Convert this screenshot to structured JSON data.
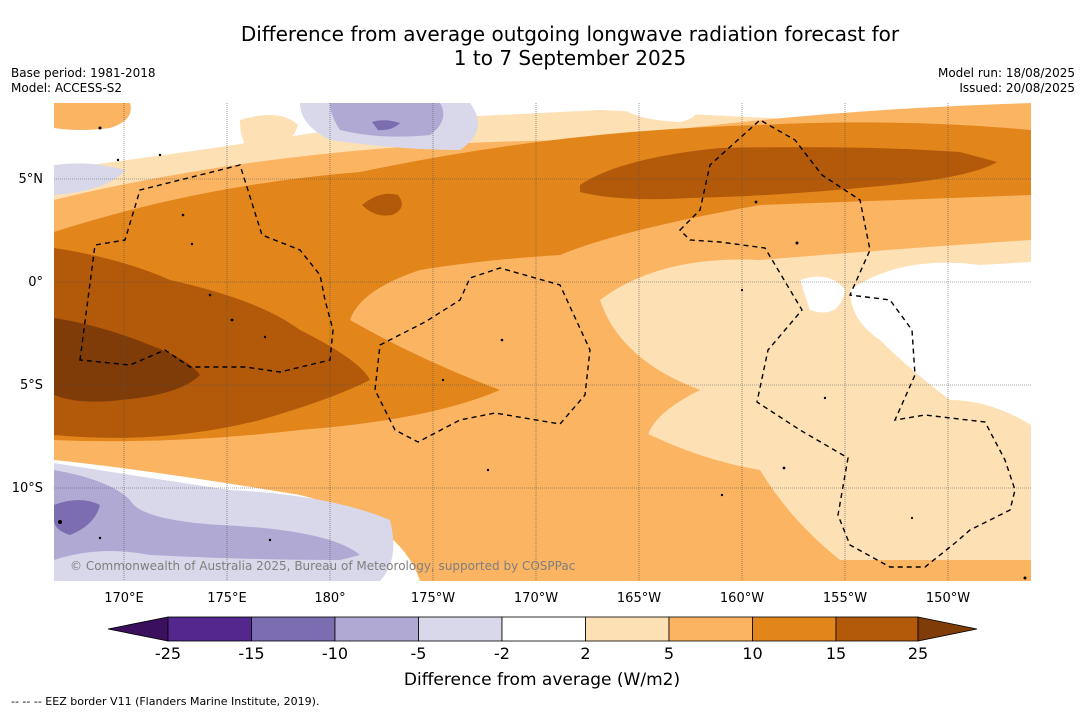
{
  "header": {
    "title_line1": "Difference from average outgoing longwave radiation forecast for",
    "title_line2": "1 to 7 September 2025",
    "base_period": "Base period: 1981-2018",
    "model": "Model: ACCESS-S2",
    "model_run": "Model run: 18/08/2025",
    "issued": "Issued: 20/08/2025"
  },
  "map": {
    "lat_ticks": [
      "5°N",
      "0°",
      "5°S",
      "10°S"
    ],
    "lon_ticks": [
      "170°E",
      "175°E",
      "180°",
      "175°W",
      "170°W",
      "165°W",
      "160°W",
      "155°W",
      "150°W"
    ],
    "copyright": "© Commonwealth of Australia 2025, Bureau of Meteorology, supported by COSPPac"
  },
  "colorbar": {
    "title": "Difference from average (W/m2)",
    "labels": [
      "-25",
      "-15",
      "-10",
      "-5",
      "-2",
      "2",
      "5",
      "10",
      "15",
      "25"
    ],
    "colors": [
      "#3a0f5e",
      "#54278f",
      "#7c6db0",
      "#b0a9d4",
      "#d8d8ea",
      "#ffffff",
      "#fde0b4",
      "#fbb462",
      "#e2851b",
      "#b3590a",
      "#7f3b08"
    ]
  },
  "footer": {
    "eez_note": "-- -- -- EEZ border V11 (Flanders Marine Institute, 2019)."
  }
}
